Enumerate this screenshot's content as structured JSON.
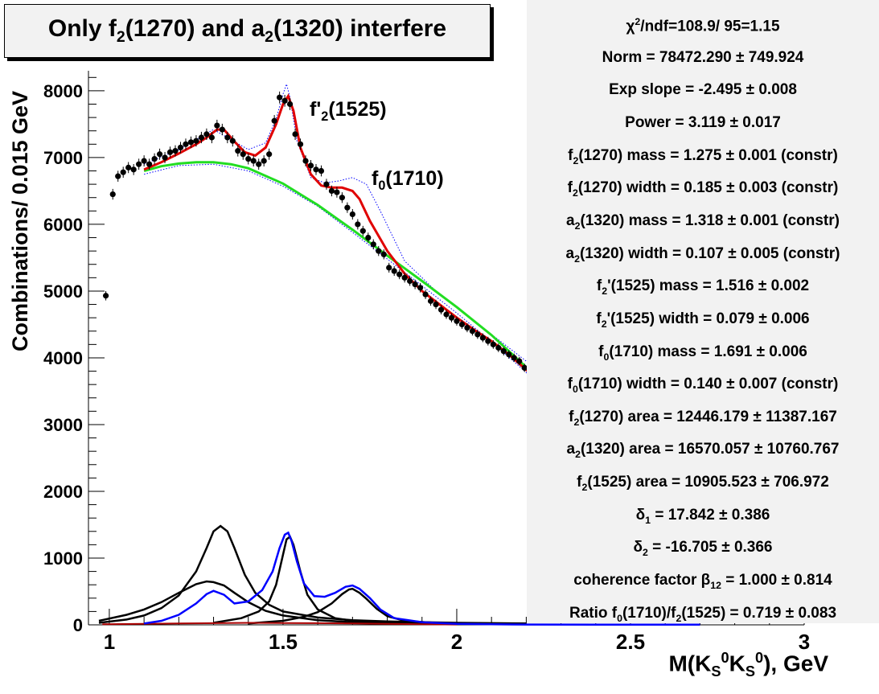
{
  "title": "Only f2(1270) and a2(1320) interfere",
  "chart_data": {
    "type": "scatter",
    "title": "Only f2(1270) and a2(1320) interfere",
    "xlabel": "M(KS0KS0), GeV",
    "ylabel": "Combinations/ 0.015 GeV",
    "xlim": [
      0.94,
      3.0
    ],
    "ylim": [
      0,
      8300
    ],
    "x_ticks": [
      "1",
      "1.5",
      "2",
      "2.5",
      "3"
    ],
    "y_ticks": [
      "0",
      "1000",
      "2000",
      "3000",
      "4000",
      "5000",
      "6000",
      "7000",
      "8000"
    ],
    "annotations": [
      "f'2(1525)",
      "f0(1710)"
    ],
    "series": [
      {
        "role": "data",
        "color": "#000000",
        "x": [
          0.99,
          1.01,
          1.025,
          1.04,
          1.055,
          1.07,
          1.085,
          1.1,
          1.115,
          1.13,
          1.145,
          1.16,
          1.175,
          1.19,
          1.205,
          1.22,
          1.235,
          1.25,
          1.265,
          1.28,
          1.295,
          1.31,
          1.325,
          1.34,
          1.355,
          1.37,
          1.385,
          1.4,
          1.415,
          1.43,
          1.445,
          1.46,
          1.475,
          1.49,
          1.505,
          1.52,
          1.535,
          1.55,
          1.565,
          1.58,
          1.595,
          1.61,
          1.625,
          1.64,
          1.655,
          1.67,
          1.685,
          1.7,
          1.715,
          1.73,
          1.745,
          1.76,
          1.775,
          1.79,
          1.805,
          1.82,
          1.835,
          1.85,
          1.865,
          1.88,
          1.895,
          1.91,
          1.925,
          1.94,
          1.955,
          1.97,
          1.985,
          2.0,
          2.015,
          2.03,
          2.045,
          2.06,
          2.075,
          2.09,
          2.105,
          2.12,
          2.135,
          2.15,
          2.165,
          2.18,
          2.195,
          2.21,
          2.225
        ],
        "y": [
          4930,
          6450,
          6720,
          6780,
          6850,
          6820,
          6900,
          6950,
          6900,
          6980,
          7050,
          7000,
          7080,
          7100,
          7150,
          7200,
          7230,
          7250,
          7300,
          7350,
          7300,
          7480,
          7420,
          7300,
          7250,
          7100,
          7050,
          6980,
          6950,
          6900,
          6950,
          7050,
          7550,
          7900,
          7850,
          7800,
          7350,
          7200,
          6950,
          6880,
          6820,
          6800,
          6600,
          6500,
          6480,
          6400,
          6250,
          6150,
          6000,
          5900,
          5800,
          5700,
          5600,
          5550,
          5350,
          5300,
          5250,
          5200,
          5150,
          5100,
          5050,
          4950,
          4850,
          4800,
          4720,
          4650,
          4600,
          4550,
          4500,
          4450,
          4400,
          4350,
          4300,
          4250,
          4200,
          4150,
          4100,
          4050,
          4000,
          3950,
          3850,
          3800,
          3820
        ]
      },
      {
        "name": "total fit",
        "color": "#e00000",
        "x": [
          1.1,
          1.15,
          1.2,
          1.25,
          1.28,
          1.31,
          1.33,
          1.36,
          1.39,
          1.42,
          1.45,
          1.48,
          1.5,
          1.515,
          1.53,
          1.55,
          1.58,
          1.61,
          1.64,
          1.67,
          1.7,
          1.72,
          1.75,
          1.8,
          1.85,
          1.9,
          1.95,
          2.0,
          2.05,
          2.1,
          2.15,
          2.2,
          2.225
        ],
        "y": [
          6820,
          6930,
          7060,
          7200,
          7300,
          7420,
          7420,
          7240,
          7080,
          7030,
          7150,
          7500,
          7800,
          7920,
          7700,
          7150,
          6750,
          6580,
          6550,
          6550,
          6500,
          6380,
          6050,
          5600,
          5260,
          5000,
          4800,
          4600,
          4420,
          4250,
          4050,
          3820,
          3700
        ]
      },
      {
        "name": "background",
        "color": "#22dd22",
        "x": [
          1.1,
          1.15,
          1.2,
          1.25,
          1.3,
          1.35,
          1.4,
          1.5,
          1.6,
          1.7,
          1.8,
          1.9,
          2.0,
          2.1,
          2.2,
          2.225
        ],
        "y": [
          6800,
          6870,
          6910,
          6930,
          6930,
          6900,
          6840,
          6610,
          6290,
          5920,
          5530,
          5150,
          4760,
          4340,
          3860,
          3700
        ]
      },
      {
        "name": "interference",
        "color": "#0000ff",
        "x": [
          1.1,
          1.15,
          1.2,
          1.25,
          1.28,
          1.3,
          1.33,
          1.36,
          1.4,
          1.44,
          1.47,
          1.49,
          1.505,
          1.515,
          1.525,
          1.54,
          1.56,
          1.59,
          1.62,
          1.65,
          1.68,
          1.7,
          1.72,
          1.75,
          1.78,
          1.82,
          1.9,
          2.0,
          2.1,
          2.2,
          2.4,
          2.6,
          2.7
        ],
        "y": [
          20,
          60,
          150,
          320,
          460,
          510,
          450,
          320,
          350,
          520,
          800,
          1150,
          1350,
          1380,
          1250,
          950,
          620,
          430,
          420,
          480,
          570,
          590,
          540,
          400,
          230,
          100,
          40,
          15,
          8,
          5,
          3,
          2,
          2
        ]
      },
      {
        "name": "components",
        "color": "#000000",
        "curves": [
          {
            "x": [
              0.97,
              1.05,
              1.1,
              1.15,
              1.2,
              1.25,
              1.28,
              1.3,
              1.32,
              1.34,
              1.36,
              1.39,
              1.42,
              1.46,
              1.5,
              1.6,
              1.7,
              1.8,
              2.0,
              2.2
            ],
            "y": [
              30,
              80,
              140,
              250,
              440,
              800,
              1150,
              1400,
              1480,
              1400,
              1150,
              750,
              480,
              300,
              200,
              110,
              70,
              50,
              30,
              20
            ]
          },
          {
            "x": [
              0.97,
              1.05,
              1.1,
              1.15,
              1.2,
              1.25,
              1.28,
              1.3,
              1.33,
              1.36,
              1.4,
              1.45,
              1.5,
              1.6,
              1.7,
              1.8,
              2.0,
              2.2
            ],
            "y": [
              60,
              150,
              230,
              340,
              480,
              610,
              650,
              640,
              590,
              480,
              340,
              210,
              140,
              70,
              40,
              30,
              20,
              15
            ]
          },
          {
            "x": [
              1.3,
              1.38,
              1.43,
              1.46,
              1.48,
              1.5,
              1.51,
              1.52,
              1.53,
              1.55,
              1.57,
              1.6,
              1.65,
              1.7,
              1.8,
              1.95
            ],
            "y": [
              30,
              100,
              200,
              350,
              600,
              1050,
              1280,
              1320,
              1200,
              800,
              450,
              230,
              100,
              60,
              30,
              15
            ]
          },
          {
            "x": [
              1.4,
              1.5,
              1.56,
              1.6,
              1.64,
              1.67,
              1.69,
              1.7,
              1.72,
              1.74,
              1.77,
              1.8,
              1.85,
              1.95,
              2.05
            ],
            "y": [
              20,
              60,
              120,
              190,
              320,
              460,
              530,
              540,
              480,
              390,
              240,
              130,
              60,
              25,
              10
            ]
          }
        ]
      },
      {
        "name": "residual",
        "color": "#aa0000",
        "x": [
          0.98,
          1.1,
          1.2,
          1.3,
          1.4,
          1.5,
          1.6,
          1.7,
          1.8,
          1.9,
          2.0
        ],
        "y": [
          10,
          15,
          20,
          25,
          30,
          28,
          25,
          20,
          15,
          10,
          5
        ]
      },
      {
        "name": "error band",
        "color": "#0000ff",
        "upper": {
          "x": [
            1.1,
            1.2,
            1.3,
            1.4,
            1.45,
            1.48,
            1.5,
            1.51,
            1.52,
            1.54,
            1.58,
            1.62,
            1.66,
            1.7,
            1.74,
            1.78,
            1.85,
            1.95,
            2.05,
            2.15,
            2.225
          ],
          "y": [
            6900,
            7120,
            7420,
            7120,
            7220,
            7580,
            7950,
            8100,
            7900,
            7250,
            6700,
            6620,
            6650,
            6700,
            6600,
            6200,
            5450,
            4950,
            4550,
            4150,
            3850
          ]
        },
        "lower": {
          "x": [
            1.1,
            1.2,
            1.3,
            1.4,
            1.5,
            1.6,
            1.7,
            1.8,
            1.9,
            2.0,
            2.1,
            2.2,
            2.225
          ],
          "y": [
            6750,
            6880,
            6900,
            6800,
            6570,
            6270,
            5880,
            5480,
            5080,
            4670,
            4240,
            3780,
            3600
          ]
        }
      }
    ]
  },
  "stats": [
    {
      "text": "χ²/ndf=108.9/ 95=1.15"
    },
    {
      "text": "Norm = 78472.290 ± 749.924"
    },
    {
      "text": "Exp slope = -2.495 ± 0.008"
    },
    {
      "text": "Power = 3.119 ± 0.017"
    },
    {
      "text": "f2(1270) mass = 1.275 ± 0.001  (constr)"
    },
    {
      "text": "f2(1270) width = 0.185 ± 0.003  (constr)"
    },
    {
      "text": "a2(1320) mass = 1.318 ± 0.001  (constr)"
    },
    {
      "text": "a2(1320) width = 0.107 ± 0.005  (constr)"
    },
    {
      "text": "f2'(1525) mass = 1.516 ± 0.002"
    },
    {
      "text": "f2'(1525) width = 0.079 ± 0.006"
    },
    {
      "text": "f0(1710) mass = 1.691 ± 0.006"
    },
    {
      "text": "f0(1710) width = 0.140 ± 0.007  (constr)"
    },
    {
      "text": "f2(1270) area = 12446.179 ± 11387.167"
    },
    {
      "text": "a2(1320) area = 16570.057 ± 10760.767"
    },
    {
      "text": "f2(1525) area = 10905.523 ± 706.972"
    },
    {
      "text": "δ1 = 17.842 ± 0.386"
    },
    {
      "text": "δ2 = -16.705 ± 0.366"
    },
    {
      "text": "coherence factor β12 = 1.000 ± 0.814"
    },
    {
      "text": "Ratio f0(1710)/f2(1525) = 0.719 ± 0.083"
    }
  ]
}
